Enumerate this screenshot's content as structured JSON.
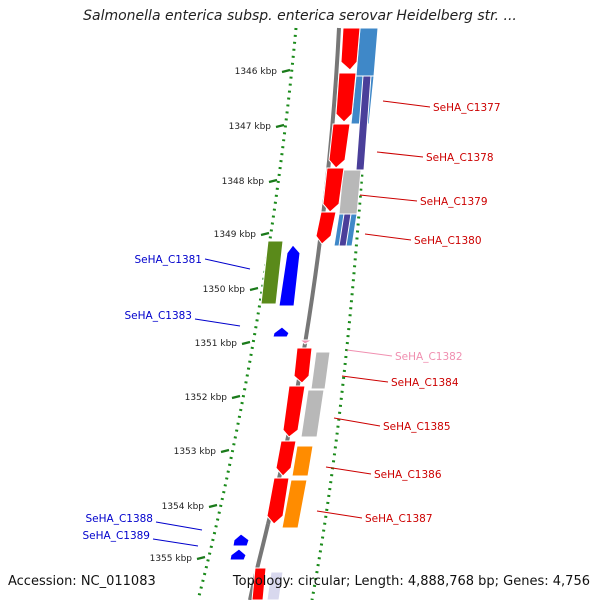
{
  "title": "Salmonella enterica subsp. enterica serovar Heidelberg str. ...",
  "accession": "Accession: NC_011083",
  "topology": "Topology: circular; Length: 4,888,768 bp; Genes: 4,756",
  "colors": {
    "axis": "#888888",
    "tick": "#1a7a1a",
    "dots": "#1a8a1a",
    "cds_forward": "#ff0000",
    "cds_reverse": "#0000ff",
    "label_forward": "#cc0000",
    "label_reverse": "#0000cc",
    "label_faded": "#f08fb0",
    "cog_blue": "#3f88c8",
    "cog_purple": "#4a3f9a",
    "cog_grey": "#b8b8b8",
    "cog_orange": "#ff8c00",
    "cog_olive": "#5a8a1a"
  },
  "ticks": [
    {
      "label": "1346 kbp"
    },
    {
      "label": "1347 kbp"
    },
    {
      "label": "1348 kbp"
    },
    {
      "label": "1349 kbp"
    },
    {
      "label": "1350 kbp"
    },
    {
      "label": "1351 kbp"
    },
    {
      "label": "1352 kbp"
    },
    {
      "label": "1353 kbp"
    },
    {
      "label": "1354 kbp"
    },
    {
      "label": "1355 kbp"
    }
  ],
  "gene_labels": [
    {
      "text": "SeHA_C1377",
      "strand": "forward"
    },
    {
      "text": "SeHA_C1378",
      "strand": "forward"
    },
    {
      "text": "SeHA_C1379",
      "strand": "forward"
    },
    {
      "text": "SeHA_C1380",
      "strand": "forward"
    },
    {
      "text": "SeHA_C1381",
      "strand": "reverse"
    },
    {
      "text": "SeHA_C1383",
      "strand": "reverse"
    },
    {
      "text": "SeHA_C1382",
      "strand": "faded"
    },
    {
      "text": "SeHA_C1384",
      "strand": "forward"
    },
    {
      "text": "SeHA_C1385",
      "strand": "forward"
    },
    {
      "text": "SeHA_C1386",
      "strand": "forward"
    },
    {
      "text": "SeHA_C1387",
      "strand": "forward"
    },
    {
      "text": "SeHA_C1388",
      "strand": "reverse"
    },
    {
      "text": "SeHA_C1389",
      "strand": "reverse"
    }
  ]
}
